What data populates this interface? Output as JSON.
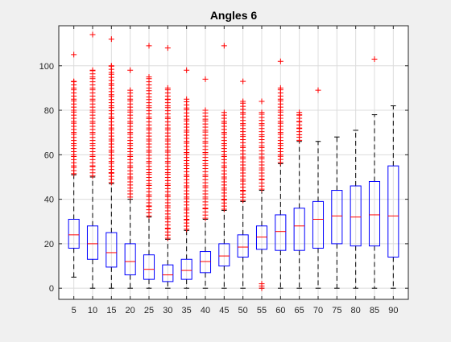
{
  "chart_data": {
    "type": "box",
    "title": "Angles 6",
    "xlabel": "",
    "ylabel": "",
    "categories": [
      "5",
      "10",
      "15",
      "20",
      "25",
      "30",
      "35",
      "40",
      "45",
      "50",
      "55",
      "60",
      "65",
      "70",
      "75",
      "80",
      "85",
      "90"
    ],
    "ylim": [
      -5,
      118
    ],
    "yticks": [
      0,
      20,
      40,
      60,
      80,
      100
    ],
    "grid": true,
    "boxes": [
      {
        "x": "5",
        "q1": 18,
        "median": 24,
        "q3": 31,
        "whisker_low": 5,
        "whisker_high": 51,
        "outliers": [
          51.5,
          55,
          60,
          65,
          70,
          75,
          80,
          85,
          90,
          93
        ],
        "outlier_max": 105
      },
      {
        "x": "10",
        "q1": 13,
        "median": 20,
        "q3": 28,
        "whisker_low": 0,
        "whisker_high": 50,
        "outliers": [
          50.5,
          55,
          60,
          65,
          70,
          75,
          80,
          85,
          90,
          95,
          98
        ],
        "outlier_max": 114
      },
      {
        "x": "15",
        "q1": 9.5,
        "median": 16,
        "q3": 25,
        "whisker_low": 0,
        "whisker_high": 47,
        "outliers": [
          47.5,
          52,
          57,
          62,
          67,
          72,
          77,
          82,
          87,
          92,
          97,
          100
        ],
        "outlier_max": 112
      },
      {
        "x": "20",
        "q1": 6,
        "median": 12,
        "q3": 20,
        "whisker_low": 0,
        "whisker_high": 40,
        "outliers": [
          41,
          45,
          50,
          55,
          60,
          65,
          70,
          75,
          80,
          85,
          89
        ],
        "outlier_max": 98
      },
      {
        "x": "25",
        "q1": 4,
        "median": 8.5,
        "q3": 15,
        "whisker_low": 0,
        "whisker_high": 32,
        "outliers": [
          32.5,
          37,
          42,
          47,
          52,
          57,
          62,
          67,
          72,
          77,
          82,
          86,
          90,
          95
        ],
        "outlier_max": 109
      },
      {
        "x": "30",
        "q1": 3,
        "median": 6,
        "q3": 10.5,
        "whisker_low": 0,
        "whisker_high": 22,
        "outliers": [
          22.5,
          27,
          32,
          37,
          42,
          47,
          52,
          57,
          62,
          67,
          72,
          77,
          82,
          85,
          90
        ],
        "outlier_max": 108
      },
      {
        "x": "35",
        "q1": 4,
        "median": 8,
        "q3": 13,
        "whisker_low": 0,
        "whisker_high": 26,
        "outliers": [
          26.5,
          31,
          36,
          41,
          46,
          51,
          56,
          61,
          66,
          71,
          76,
          81,
          85
        ],
        "outlier_max": 98
      },
      {
        "x": "40",
        "q1": 7,
        "median": 12,
        "q3": 16.5,
        "whisker_low": 0,
        "whisker_high": 31,
        "outliers": [
          31.5,
          36,
          41,
          46,
          51,
          56,
          61,
          66,
          71,
          76,
          80
        ],
        "outlier_max": 94
      },
      {
        "x": "45",
        "q1": 10,
        "median": 14.5,
        "q3": 20,
        "whisker_low": 0,
        "whisker_high": 35,
        "outliers": [
          35.5,
          40,
          45,
          50,
          55,
          60,
          65,
          70,
          75,
          79
        ],
        "outlier_max": 109
      },
      {
        "x": "50",
        "q1": 14,
        "median": 18.5,
        "q3": 24,
        "whisker_low": 0,
        "whisker_high": 39,
        "outliers": [
          39.5,
          44,
          49,
          54,
          59,
          64,
          69,
          74,
          79,
          84
        ],
        "outlier_max": 93
      },
      {
        "x": "55",
        "q1": 17.5,
        "median": 23,
        "q3": 28,
        "whisker_low": 0,
        "whisker_high": 44,
        "outliers": [
          0,
          1,
          2,
          44.5,
          49,
          54,
          59,
          64,
          69,
          74,
          79
        ],
        "outlier_max": 84
      },
      {
        "x": "60",
        "q1": 17,
        "median": 25.5,
        "q3": 33,
        "whisker_low": 0,
        "whisker_high": 56,
        "outliers": [
          56.5,
          60,
          65,
          70,
          75,
          80,
          85,
          90
        ],
        "outlier_max": 102
      },
      {
        "x": "65",
        "q1": 17,
        "median": 28,
        "q3": 36,
        "whisker_low": 0,
        "whisker_high": 66,
        "outliers": [
          66.5,
          69,
          72,
          75,
          78
        ],
        "outlier_max": 79
      },
      {
        "x": "70",
        "q1": 18,
        "median": 31,
        "q3": 39,
        "whisker_low": 0,
        "whisker_high": 66,
        "outliers": [],
        "outlier_max": 89
      },
      {
        "x": "75",
        "q1": 20,
        "median": 32.5,
        "q3": 44,
        "whisker_low": 0,
        "whisker_high": 68,
        "outliers": [],
        "outlier_max": null
      },
      {
        "x": "80",
        "q1": 19,
        "median": 32,
        "q3": 46,
        "whisker_low": 0,
        "whisker_high": 71,
        "outliers": [],
        "outlier_max": null
      },
      {
        "x": "85",
        "q1": 19,
        "median": 33,
        "q3": 48,
        "whisker_low": 0,
        "whisker_high": 78,
        "outliers": [],
        "outlier_max": 103
      },
      {
        "x": "90",
        "q1": 14,
        "median": 32.5,
        "q3": 55,
        "whisker_low": 0,
        "whisker_high": 82,
        "outliers": [],
        "outlier_max": null
      }
    ]
  },
  "colors": {
    "box": "#0000ff",
    "median": "#ff0000",
    "outlier": "#ff0000",
    "whisker": "#000000",
    "plot_bg": "#ffffff",
    "figure_bg": "#f0f0f0",
    "grid": "#dcdcdc"
  }
}
